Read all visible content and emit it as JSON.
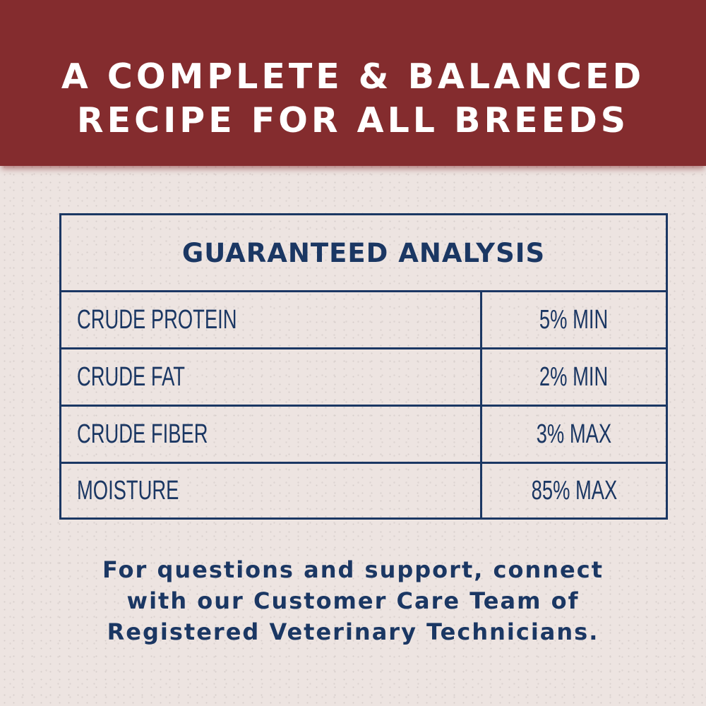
{
  "colors": {
    "banner": "#842c2e",
    "background": "#ede4e1",
    "navy": "#1b3763"
  },
  "banner": {
    "line1": "A COMPLETE & BALANCED",
    "line2": "RECIPE FOR ALL BREEDS"
  },
  "analysis": {
    "title": "GUARANTEED ANALYSIS",
    "rows": [
      {
        "label": "CRUDE PROTEIN",
        "value": "5% MIN"
      },
      {
        "label": "CRUDE FAT",
        "value": "2% MIN"
      },
      {
        "label": "CRUDE FIBER",
        "value": "3% MAX"
      },
      {
        "label": "MOISTURE",
        "value": "85% MAX"
      }
    ]
  },
  "footer": {
    "line1": "For questions and support, connect",
    "line2": "with our Customer Care Team of",
    "line3": "Registered Veterinary Technicians."
  }
}
